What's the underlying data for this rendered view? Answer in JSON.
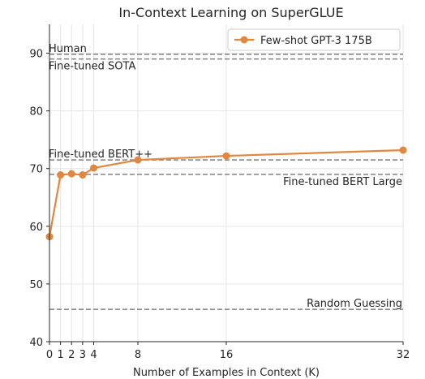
{
  "colors": {
    "series": "#e1873f",
    "reference": "#8c8c8c",
    "grid": "#e6e6e6",
    "axes": "#262626"
  },
  "chart_data": {
    "type": "line",
    "title": "In-Context Learning on SuperGLUE",
    "xlabel": "Number of Examples in Context (K)",
    "ylabel": "",
    "xlim": [
      0,
      32
    ],
    "ylim": [
      40,
      95
    ],
    "x_ticks": [
      0,
      1,
      2,
      3,
      4,
      8,
      16,
      32
    ],
    "y_ticks": [
      40,
      50,
      60,
      70,
      80,
      90
    ],
    "grid": true,
    "legend": {
      "position": "top-right"
    },
    "series": [
      {
        "name": "Few-shot GPT-3 175B",
        "x": [
          0,
          1,
          2,
          3,
          4,
          8,
          16,
          32
        ],
        "y": [
          58.2,
          68.9,
          69.1,
          68.9,
          70.1,
          71.5,
          72.2,
          73.2
        ]
      }
    ],
    "reference_lines": [
      {
        "label": "Human",
        "y": 89.8,
        "label_anchor": "left",
        "label_side": "above"
      },
      {
        "label": "Fine-tuned SOTA",
        "y": 89.0,
        "label_anchor": "left",
        "label_side": "below"
      },
      {
        "label": "Fine-tuned BERT++",
        "y": 71.5,
        "label_anchor": "left",
        "label_side": "above"
      },
      {
        "label": "Fine-tuned BERT Large",
        "y": 69.0,
        "label_anchor": "right",
        "label_side": "below"
      },
      {
        "label": "Random Guessing",
        "y": 45.6,
        "label_anchor": "right",
        "label_side": "above"
      }
    ]
  }
}
